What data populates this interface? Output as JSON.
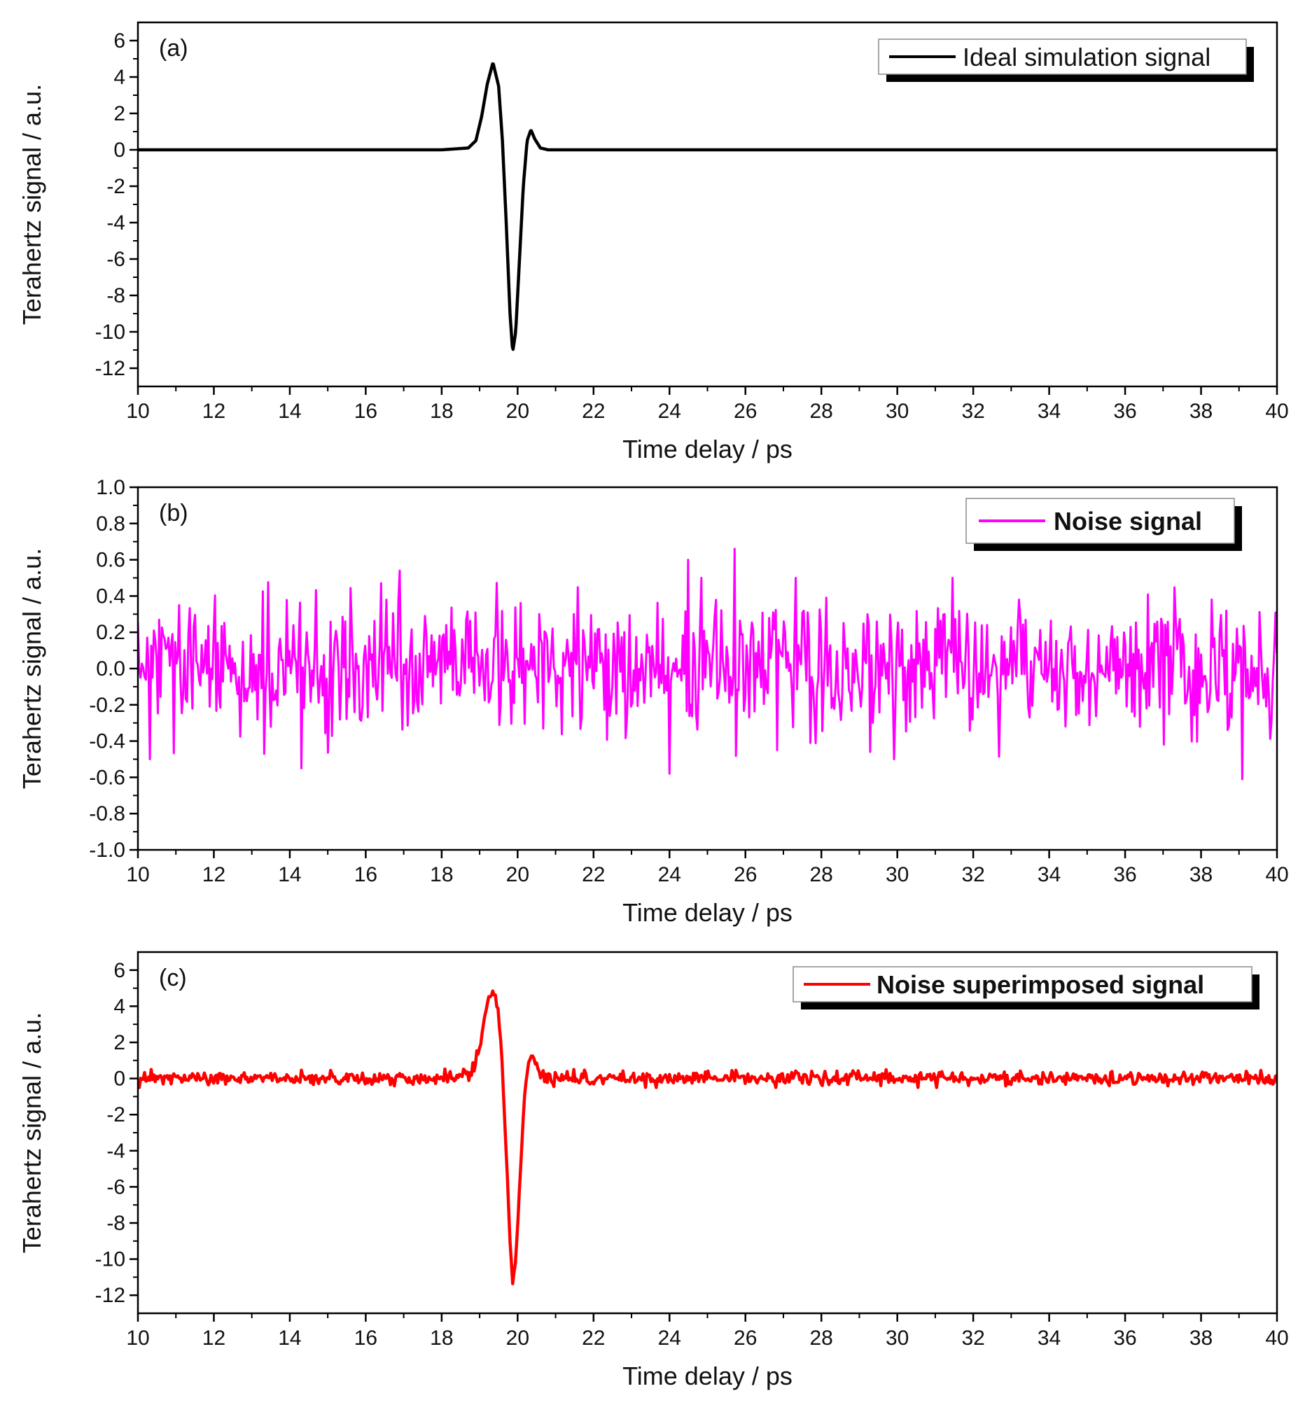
{
  "chart_data": [
    {
      "type": "line",
      "panel_label": "(a)",
      "xlabel": "Time delay / ps",
      "ylabel": "Terahertz signal / a.u.",
      "xlim": [
        10,
        40
      ],
      "ylim": [
        -13,
        7
      ],
      "x_ticks": [
        10,
        12,
        14,
        16,
        18,
        20,
        22,
        24,
        26,
        28,
        30,
        32,
        34,
        36,
        38,
        40
      ],
      "y_ticks": [
        6,
        4,
        2,
        0,
        -2,
        -4,
        -6,
        -8,
        -10,
        -12
      ],
      "legend_position": "top-right",
      "series": [
        {
          "name": "Ideal simulation signal",
          "color": "#000000",
          "x": [
            10,
            18.0,
            18.7,
            18.9,
            19.05,
            19.2,
            19.35,
            19.5,
            19.6,
            19.7,
            19.8,
            19.87,
            19.95,
            20.05,
            20.15,
            20.25,
            20.35,
            20.45,
            20.6,
            20.8,
            21.0,
            40
          ],
          "y": [
            0,
            0,
            0.1,
            0.5,
            1.8,
            3.6,
            4.8,
            3.5,
            0.5,
            -4.0,
            -9.0,
            -11.1,
            -10.0,
            -6.0,
            -2.0,
            0.5,
            1.1,
            0.6,
            0.1,
            0,
            0,
            0
          ]
        }
      ]
    },
    {
      "type": "line",
      "panel_label": "(b)",
      "xlabel": "Time delay / ps",
      "ylabel": "Terahertz signal / a.u.",
      "xlim": [
        10,
        40
      ],
      "ylim": [
        -1.0,
        1.0
      ],
      "x_ticks": [
        10,
        12,
        14,
        16,
        18,
        20,
        22,
        24,
        26,
        28,
        30,
        32,
        34,
        36,
        38,
        40
      ],
      "y_ticks": [
        "1.0",
        "0.8",
        "0.6",
        "0.4",
        "0.2",
        "0.0",
        "-0.2",
        "-0.4",
        "-0.6",
        "-0.8",
        "-1.0"
      ],
      "legend_position": "top-right",
      "series": [
        {
          "name": "Noise signal",
          "color": "#ff00ff",
          "noise_amplitude_std": 0.18,
          "notable_points": [
            {
              "x": 10.3,
              "y": -0.5
            },
            {
              "x": 14.3,
              "y": -0.55
            },
            {
              "x": 16.9,
              "y": 0.54
            },
            {
              "x": 24.0,
              "y": -0.58
            },
            {
              "x": 24.5,
              "y": 0.6
            },
            {
              "x": 25.7,
              "y": 0.66
            },
            {
              "x": 39.1,
              "y": -0.61
            }
          ]
        }
      ]
    },
    {
      "type": "line",
      "panel_label": "(c)",
      "xlabel": "Time delay / ps",
      "ylabel": "Terahertz signal / a.u.",
      "xlim": [
        10,
        40
      ],
      "ylim": [
        -13,
        7
      ],
      "x_ticks": [
        10,
        12,
        14,
        16,
        18,
        20,
        22,
        24,
        26,
        28,
        30,
        32,
        34,
        36,
        38,
        40
      ],
      "y_ticks": [
        6,
        4,
        2,
        0,
        -2,
        -4,
        -6,
        -8,
        -10,
        -12
      ],
      "legend_position": "top-right",
      "series": [
        {
          "name": "Noise superimposed signal",
          "color": "#ff0000",
          "x": [
            10,
            18.0,
            18.7,
            18.9,
            19.05,
            19.2,
            19.35,
            19.5,
            19.6,
            19.7,
            19.8,
            19.87,
            19.95,
            20.05,
            20.15,
            20.25,
            20.35,
            20.45,
            20.6,
            20.8,
            21.0,
            40
          ],
          "y": [
            0,
            0,
            0.2,
            0.8,
            2.2,
            4.0,
            5.0,
            3.8,
            0.6,
            -4.0,
            -9.0,
            -11.2,
            -10.1,
            -6.0,
            -2.0,
            0.6,
            1.4,
            0.8,
            0.2,
            0,
            0,
            0
          ],
          "noise_amplitude_std": 0.18
        }
      ]
    }
  ]
}
